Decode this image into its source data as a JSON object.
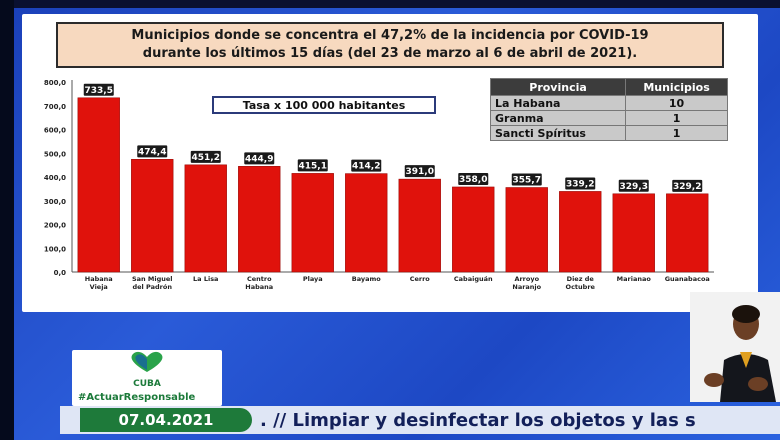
{
  "title_lines": [
    "Municipios donde se concentra el 47,2% de la incidencia por COVID-19",
    "durante los últimos 15 días (del 23 de marzo al 6 de abril de 2021)."
  ],
  "chart_data": {
    "type": "bar",
    "title": "Municipios donde se concentra el 47,2% de la incidencia por COVID-19 durante los últimos 15 días (del 23 de marzo al 6 de abril de 2021).",
    "subtitle": "Tasa x 100 000 habitantes",
    "categories": [
      [
        "Habana",
        "Vieja"
      ],
      [
        "San Miguel",
        "del Padrón"
      ],
      [
        "La Lisa"
      ],
      [
        "Centro",
        "Habana"
      ],
      [
        "Playa"
      ],
      [
        "Bayamo"
      ],
      [
        "Cerro"
      ],
      [
        "Cabaiguán"
      ],
      [
        "Arroyo",
        "Naranjo"
      ],
      [
        "Diez de",
        "Octubre"
      ],
      [
        "Marianao"
      ],
      [
        "Guanabacoa"
      ]
    ],
    "values": [
      733.5,
      474.4,
      451.2,
      444.9,
      415.1,
      414.2,
      391.0,
      358.0,
      355.7,
      339.2,
      329.3,
      329.2
    ],
    "value_labels": [
      "733,5",
      "474,4",
      "451,2",
      "444,9",
      "415,1",
      "414,2",
      "391,0",
      "358,0",
      "355,7",
      "339,2",
      "329,3",
      "329,2"
    ],
    "yticks": [
      0,
      100,
      200,
      300,
      400,
      500,
      600,
      700,
      800
    ],
    "ytick_labels": [
      "0,0",
      "100,0",
      "200,0",
      "300,0",
      "400,0",
      "500,0",
      "600,0",
      "700,0",
      "800,0"
    ],
    "ylim": [
      0,
      800
    ],
    "xlabel": "",
    "ylabel": "",
    "grid": false,
    "bar_color": "#e0120c",
    "label_bg": "#1a1a1a"
  },
  "province_table": {
    "headers": [
      "Provincia",
      "Municipios"
    ],
    "rows": [
      [
        "La Habana",
        "10"
      ],
      [
        "Granma",
        "1"
      ],
      [
        "Sancti Spíritus",
        "1"
      ]
    ]
  },
  "logo": {
    "word": "CUBA",
    "icon": "heart-logo-icon"
  },
  "hashtag": "#ActuarResponsable",
  "date": "07.04.2021",
  "ticker": ". // Limpiar y desinfectar los objetos y las s"
}
